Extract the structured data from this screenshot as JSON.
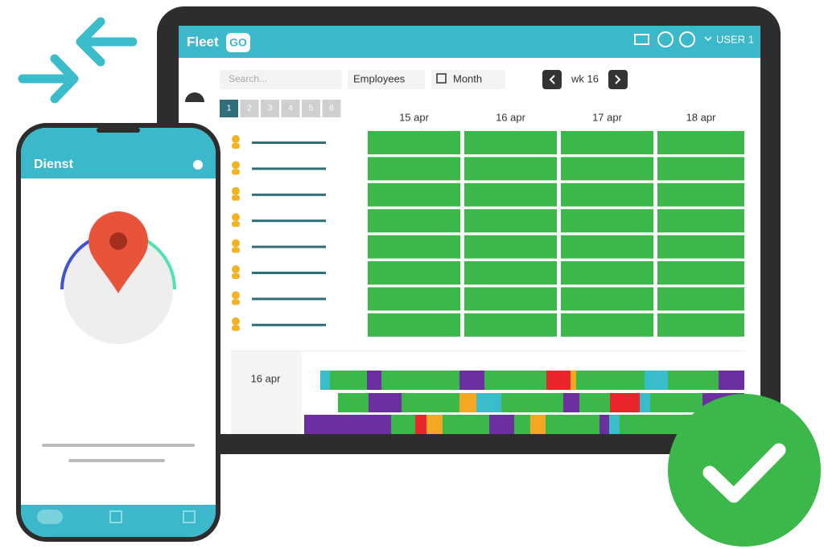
{
  "header": {
    "logo_text": "Fleet",
    "logo_badge": "GO",
    "user": "USER 1"
  },
  "toolbar": {
    "search_placeholder": "Search...",
    "filter": "Employees",
    "view": "Month",
    "week": "wk 16"
  },
  "pagination": [
    "1",
    "2",
    "3",
    "4",
    "5",
    "6"
  ],
  "calendar": {
    "columns": [
      "15 apr",
      "16 apr",
      "17 apr",
      "18 apr"
    ]
  },
  "timeline": {
    "date": "16 apr"
  },
  "phone": {
    "title": "Dienst"
  }
}
